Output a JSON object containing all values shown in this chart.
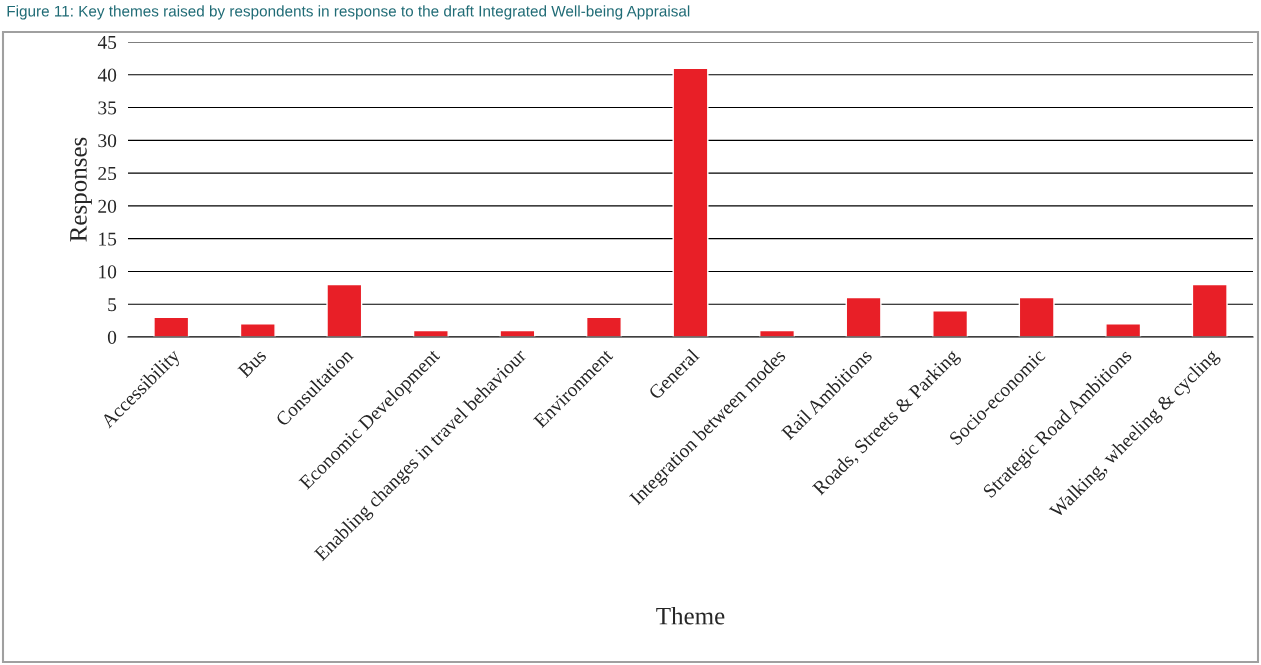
{
  "chart_data": {
    "type": "bar",
    "title": "Figure 11: Key themes raised by respondents in response to the draft Integrated Well-being Appraisal",
    "xlabel": "Theme",
    "ylabel": "Responses",
    "categories": [
      "Accessibility",
      "Bus",
      "Consultation",
      "Economic Development",
      "Enabling changes in travel behaviour",
      "Environment",
      "General",
      "Integration between modes",
      "Rail Ambitions",
      "Roads, Streets & Parking",
      "Socio-economic",
      "Strategic Road Ambitions",
      "Walking, wheeling & cycling"
    ],
    "values": [
      3,
      2,
      8,
      1,
      1,
      3,
      41,
      1,
      6,
      4,
      6,
      2,
      8
    ],
    "color": "#e81f27",
    "ylim": [
      0,
      45
    ],
    "yticks": [
      0,
      5,
      10,
      15,
      20,
      25,
      30,
      35,
      40,
      45
    ],
    "grid": "y"
  }
}
